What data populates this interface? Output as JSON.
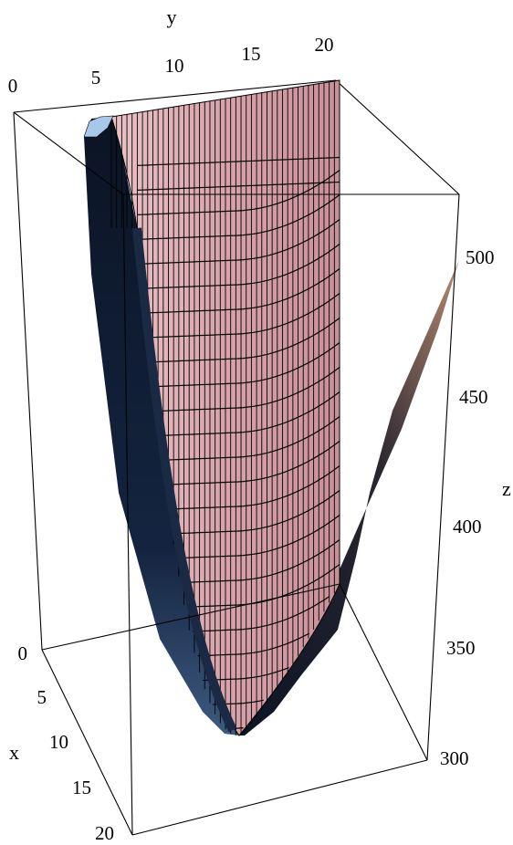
{
  "chart_data": {
    "type": "surface3d",
    "title": "",
    "xlabel": "x",
    "ylabel": "y",
    "zlabel": "z",
    "x_ticks": [
      "0",
      "5",
      "10",
      "15",
      "20"
    ],
    "y_ticks": [
      "0",
      "5",
      "10",
      "15",
      "20"
    ],
    "z_ticks": [
      "300",
      "350",
      "400",
      "450",
      "500"
    ],
    "xlim": [
      0,
      20
    ],
    "ylim": [
      0,
      20
    ],
    "zlim": [
      300,
      520
    ],
    "minimum": {
      "x": 12,
      "y": 14,
      "z": 310
    },
    "colors": {
      "surface_top": "#d8a8ae",
      "surface_side": "#0d1a30",
      "highlight": "#a9c7ea",
      "mesh": "#000000"
    }
  }
}
